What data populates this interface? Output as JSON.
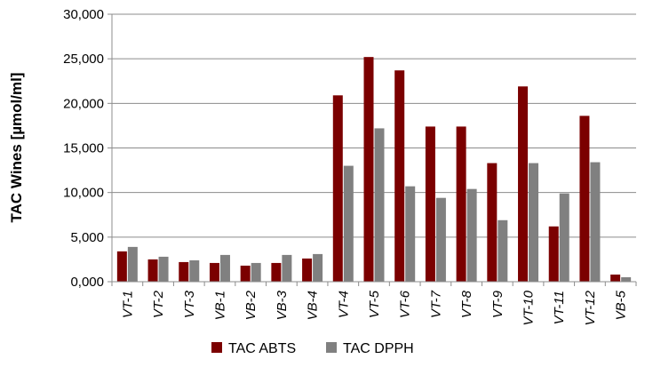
{
  "chart_data": {
    "type": "bar",
    "title": "",
    "xlabel": "",
    "ylabel": "TAC Wines [µmol/ml]",
    "ylim": [
      0,
      30000
    ],
    "yticks": [
      "0,000",
      "5,000",
      "10,000",
      "15,000",
      "20,000",
      "25,000",
      "30,000"
    ],
    "ytick_values": [
      0,
      5000,
      10000,
      15000,
      20000,
      25000,
      30000
    ],
    "grid": "horizontal",
    "legend_position": "bottom",
    "categories": [
      "VT-1",
      "VT-2",
      "VT-3",
      "VB-1",
      "VB-2",
      "VB-3",
      "VB-4",
      "VT-4",
      "VT-5",
      "VT-6",
      "VT-7",
      "VT-8",
      "VT-9",
      "VT-10",
      "VT-11",
      "VT-12",
      "VB-5"
    ],
    "series": [
      {
        "name": "TAC ABTS",
        "color": "#7b0000",
        "values": [
          3400,
          2500,
          2200,
          2100,
          1800,
          2100,
          2600,
          20900,
          25200,
          23700,
          17400,
          17400,
          13300,
          21900,
          6200,
          18600,
          800
        ]
      },
      {
        "name": "TAC DPPH",
        "color": "#808080",
        "values": [
          3900,
          2800,
          2400,
          3000,
          2100,
          3000,
          3100,
          13000,
          17200,
          10700,
          9400,
          10400,
          6900,
          13300,
          9900,
          13400,
          500
        ]
      }
    ]
  }
}
